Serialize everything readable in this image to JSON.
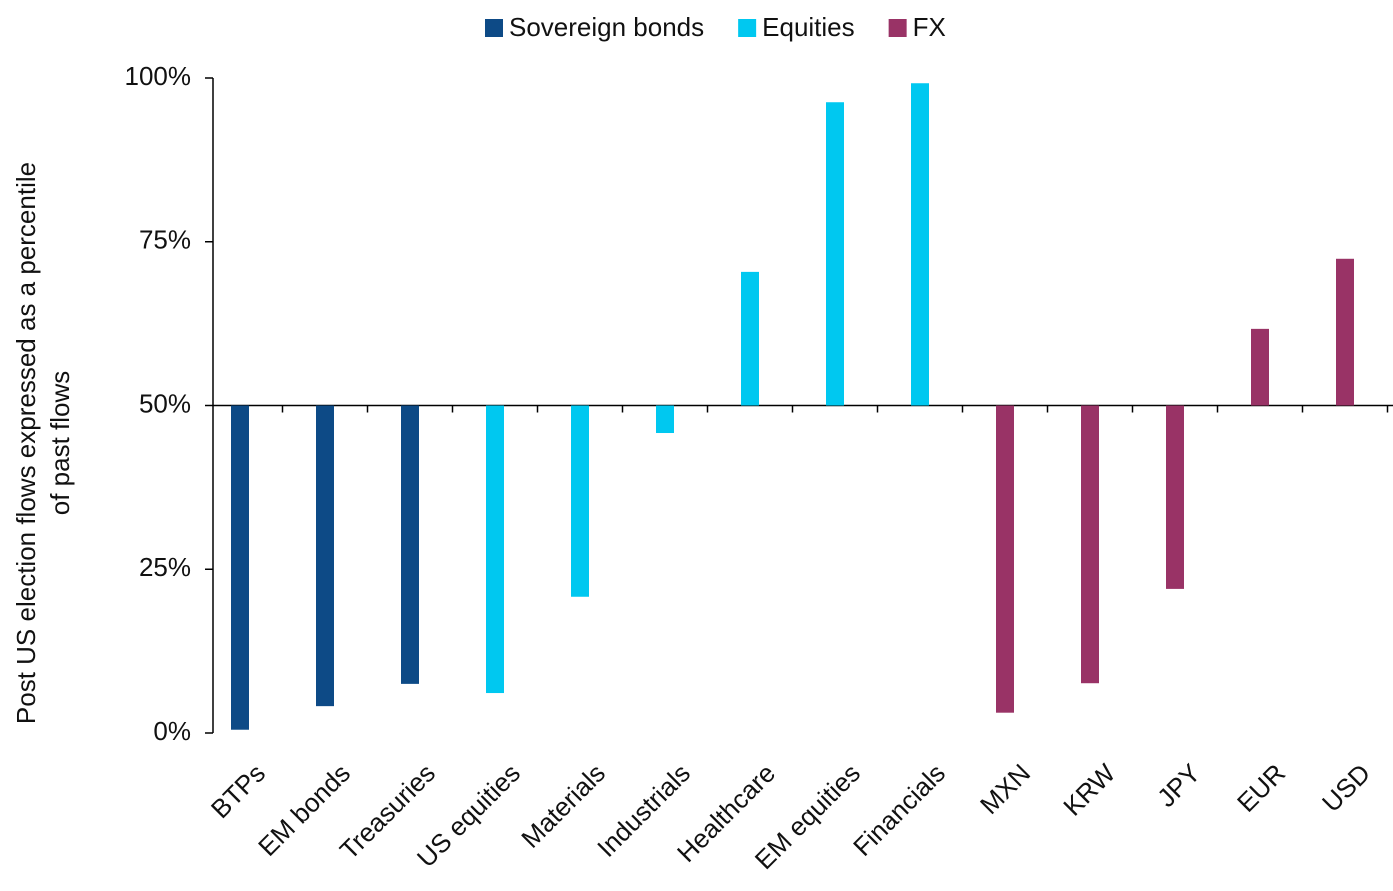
{
  "chart_data": {
    "type": "bar",
    "ylabel": [
      "Post US election  flows expressed as a percentile",
      "of past flows"
    ],
    "categories": [
      "BTPs",
      "EM bonds",
      "Treasuries",
      "US equities",
      "Materials",
      "Industrials",
      "Healthcare",
      "EM equities",
      "Financials",
      "MXN",
      "KRW",
      "JPY",
      "EUR",
      "USD"
    ],
    "series": [
      {
        "name": "Sovereign bonds",
        "color": "#0d4a86",
        "values": [
          0.5,
          4.1,
          7.5,
          null,
          null,
          null,
          null,
          null,
          null,
          null,
          null,
          null,
          null,
          null
        ]
      },
      {
        "name": "Equities",
        "color": "#00c8f0",
        "values": [
          null,
          null,
          null,
          6.1,
          20.8,
          45.8,
          70.4,
          96.3,
          99.2,
          null,
          null,
          null,
          null,
          null
        ]
      },
      {
        "name": "FX",
        "color": "#993366",
        "values": [
          null,
          null,
          null,
          null,
          null,
          null,
          null,
          null,
          null,
          3.1,
          7.6,
          22,
          61.7,
          72.4
        ]
      }
    ],
    "baseline": 50,
    "ylim": [
      0,
      100
    ],
    "yticks": [
      {
        "value": 0,
        "label": "0%"
      },
      {
        "value": 25,
        "label": "25%"
      },
      {
        "value": 50,
        "label": "50%"
      },
      {
        "value": 75,
        "label": "75%"
      },
      {
        "value": 100,
        "label": "100%"
      }
    ],
    "legend": "top"
  }
}
